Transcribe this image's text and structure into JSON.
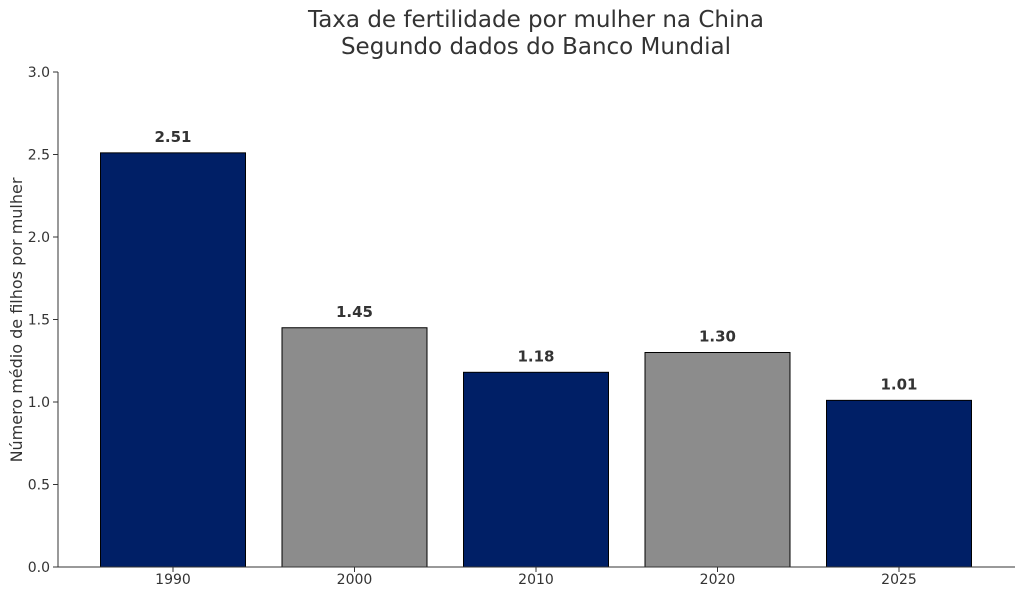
{
  "chart_data": {
    "type": "bar",
    "title": "Taxa de fertilidade por mulher na China",
    "subtitle": "Segundo dados do Banco Mundial",
    "xlabel": "",
    "ylabel": "Número médio de filhos por mulher",
    "categories": [
      "1990",
      "2000",
      "2010",
      "2020",
      "2025"
    ],
    "values": [
      2.51,
      1.45,
      1.18,
      1.3,
      1.01
    ],
    "data_labels": [
      "2.51",
      "1.45",
      "1.18",
      "1.30",
      "1.01"
    ],
    "bar_colors": [
      "#001f66",
      "#8c8c8c",
      "#001f66",
      "#8c8c8c",
      "#001f66"
    ],
    "ylim": [
      0,
      3.0
    ],
    "yticks": [
      0,
      0.5,
      1.0,
      1.5,
      2.0,
      2.5,
      3.0
    ],
    "ytick_labels": [
      "0.0",
      "0.5",
      "1.0",
      "1.5",
      "2.0",
      "2.5",
      "3.0"
    ],
    "grid": false,
    "legend": "none"
  }
}
